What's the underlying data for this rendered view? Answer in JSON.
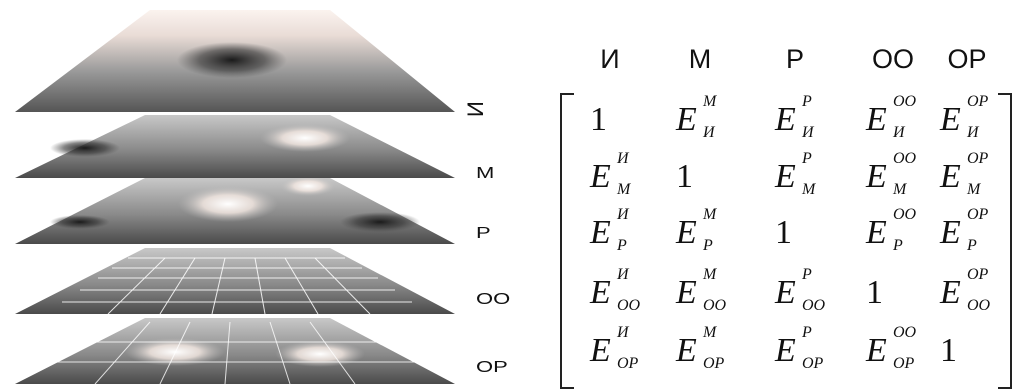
{
  "layers": [
    {
      "label": "И"
    },
    {
      "label": "М"
    },
    {
      "label": "Р"
    },
    {
      "label": "ОО"
    },
    {
      "label": "ОР"
    }
  ],
  "matrix": {
    "columns": [
      "И",
      "М",
      "Р",
      "ОО",
      "ОР"
    ],
    "rows": [
      [
        {
          "one": "1"
        },
        {
          "base": "E",
          "sup": "М",
          "sub": "И"
        },
        {
          "base": "E",
          "sup": "P",
          "sub": "И"
        },
        {
          "base": "E",
          "sup": "OO",
          "sub": "И"
        },
        {
          "base": "E",
          "sup": "OP",
          "sub": "И"
        }
      ],
      [
        {
          "base": "E",
          "sup": "И",
          "sub": "М"
        },
        {
          "one": "1"
        },
        {
          "base": "E",
          "sup": "P",
          "sub": "M"
        },
        {
          "base": "E",
          "sup": "OO",
          "sub": "M"
        },
        {
          "base": "E",
          "sup": "OP",
          "sub": "M"
        }
      ],
      [
        {
          "base": "E",
          "sup": "И",
          "sub": "P"
        },
        {
          "base": "E",
          "sup": "M",
          "sub": "P"
        },
        {
          "one": "1"
        },
        {
          "base": "E",
          "sup": "OO",
          "sub": "P"
        },
        {
          "base": "E",
          "sup": "OP",
          "sub": "P"
        }
      ],
      [
        {
          "base": "E",
          "sup": "И",
          "sub": "OO"
        },
        {
          "base": "E",
          "sup": "M",
          "sub": "OO"
        },
        {
          "base": "E",
          "sup": "P",
          "sub": "OO"
        },
        {
          "one": "1"
        },
        {
          "base": "E",
          "sup": "OP",
          "sub": "OO"
        }
      ],
      [
        {
          "base": "E",
          "sup": "И",
          "sub": "OP"
        },
        {
          "base": "E",
          "sup": "M",
          "sub": "OP"
        },
        {
          "base": "E",
          "sup": "P",
          "sub": "OP"
        },
        {
          "base": "E",
          "sup": "OO",
          "sub": "OP"
        },
        {
          "one": "1"
        }
      ]
    ]
  }
}
